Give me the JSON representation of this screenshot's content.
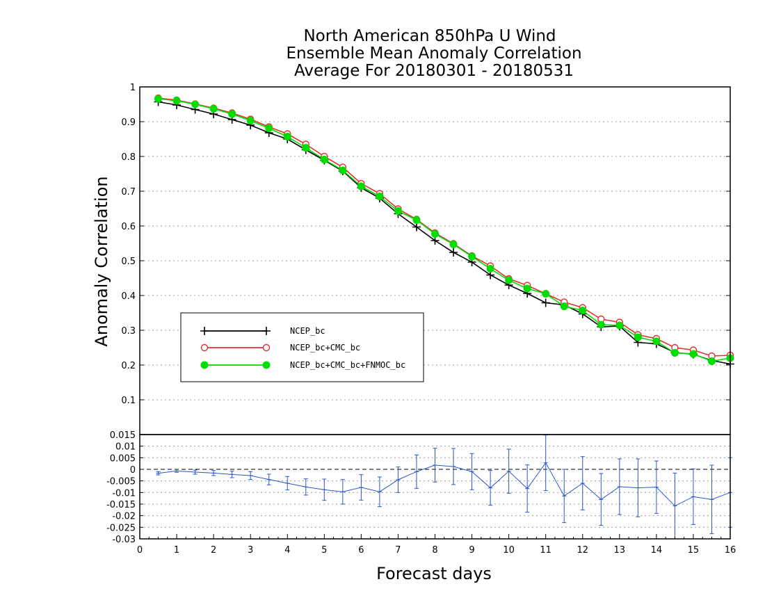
{
  "chart_data": [
    {
      "type": "line",
      "title": [
        "North American 850hPa U Wind",
        "Ensemble Mean Anomaly Correlation",
        "Average For 20180301 - 20180531"
      ],
      "xlabel": "",
      "ylabel": "Anomaly Correlation",
      "xlim": [
        0,
        16
      ],
      "ylim": [
        0,
        1
      ],
      "yticks": [
        "0.1",
        "0.2",
        "0.3",
        "0.4",
        "0.5",
        "0.6",
        "0.7",
        "0.8",
        "0.9",
        "1"
      ],
      "grid": true,
      "legend_position": "lower-left",
      "x": [
        0.5,
        1,
        1.5,
        2,
        2.5,
        3,
        3.5,
        4,
        4.5,
        5,
        5.5,
        6,
        6.5,
        7,
        7.5,
        8,
        8.5,
        9,
        9.5,
        10,
        10.5,
        11,
        11.5,
        12,
        12.5,
        13,
        13.5,
        14,
        14.5,
        15,
        15.5,
        16
      ],
      "series": [
        {
          "name": "NCEP_bc",
          "color": "#000000",
          "marker": "plus",
          "values": [
            0.957,
            0.948,
            0.935,
            0.922,
            0.906,
            0.89,
            0.868,
            0.85,
            0.819,
            0.789,
            0.758,
            0.71,
            0.68,
            0.635,
            0.597,
            0.558,
            0.524,
            0.496,
            0.459,
            0.43,
            0.406,
            0.379,
            0.373,
            0.347,
            0.31,
            0.312,
            0.265,
            0.261,
            0.236,
            0.231,
            0.213,
            0.203
          ]
        },
        {
          "name": "NCEP_bc+CMC_bc",
          "color": "#e03030",
          "marker": "open-circle",
          "values": [
            0.968,
            0.962,
            0.951,
            0.939,
            0.925,
            0.907,
            0.885,
            0.865,
            0.835,
            0.8,
            0.769,
            0.722,
            0.693,
            0.649,
            0.619,
            0.58,
            0.549,
            0.514,
            0.485,
            0.448,
            0.429,
            0.405,
            0.381,
            0.365,
            0.332,
            0.323,
            0.287,
            0.276,
            0.25,
            0.243,
            0.226,
            0.228
          ]
        },
        {
          "name": "NCEP_bc+CMC_bc+FNMOC_bc",
          "color": "#00dd00",
          "marker": "filled-circle",
          "values": [
            0.966,
            0.96,
            0.95,
            0.937,
            0.922,
            0.903,
            0.881,
            0.857,
            0.825,
            0.791,
            0.76,
            0.714,
            0.685,
            0.643,
            0.617,
            0.577,
            0.547,
            0.512,
            0.477,
            0.444,
            0.42,
            0.405,
            0.369,
            0.357,
            0.316,
            0.314,
            0.28,
            0.268,
            0.235,
            0.232,
            0.211,
            0.22
          ]
        }
      ]
    },
    {
      "type": "line",
      "xlabel": "Forecast days",
      "xlim": [
        0,
        16
      ],
      "xticks": [
        "0",
        "1",
        "2",
        "3",
        "4",
        "5",
        "6",
        "7",
        "8",
        "9",
        "10",
        "11",
        "12",
        "13",
        "14",
        "15",
        "16"
      ],
      "ylim": [
        -0.03,
        0.015
      ],
      "yticks": [
        "0.015",
        "0.01",
        "0.005",
        "0",
        "-0.005",
        "-0.01",
        "-0.015",
        "-0.02",
        "-0.025",
        "-0.03"
      ],
      "grid": true,
      "error_bars": true,
      "color": "#2a55cc",
      "x": [
        0.5,
        1,
        1.5,
        2,
        2.5,
        3,
        3.5,
        4,
        4.5,
        5,
        5.5,
        6,
        6.5,
        7,
        7.5,
        8,
        8.5,
        9,
        9.5,
        10,
        10.5,
        11,
        11.5,
        12,
        12.5,
        13,
        13.5,
        14,
        14.5,
        15,
        15.5,
        16
      ],
      "values": [
        -0.0017,
        -0.0007,
        -0.0012,
        -0.0016,
        -0.0022,
        -0.0027,
        -0.0044,
        -0.006,
        -0.0076,
        -0.0088,
        -0.0097,
        -0.0078,
        -0.0097,
        -0.0045,
        -0.001,
        0.0018,
        0.0012,
        -0.001,
        -0.008,
        -0.0008,
        -0.0083,
        0.0028,
        -0.0115,
        -0.006,
        -0.013,
        -0.0075,
        -0.008,
        -0.0077,
        -0.0158,
        -0.0118,
        -0.013,
        -0.01
      ],
      "errors": [
        0.0007,
        0.0006,
        0.0009,
        0.0011,
        0.0014,
        0.0017,
        0.0023,
        0.0029,
        0.0035,
        0.0046,
        0.0053,
        0.0055,
        0.0064,
        0.0055,
        0.0072,
        0.0073,
        0.0078,
        0.0078,
        0.0075,
        0.0095,
        0.0102,
        0.012,
        0.0115,
        0.0115,
        0.0112,
        0.012,
        0.0125,
        0.0113,
        0.0142,
        0.012,
        0.0148,
        0.015
      ]
    }
  ]
}
